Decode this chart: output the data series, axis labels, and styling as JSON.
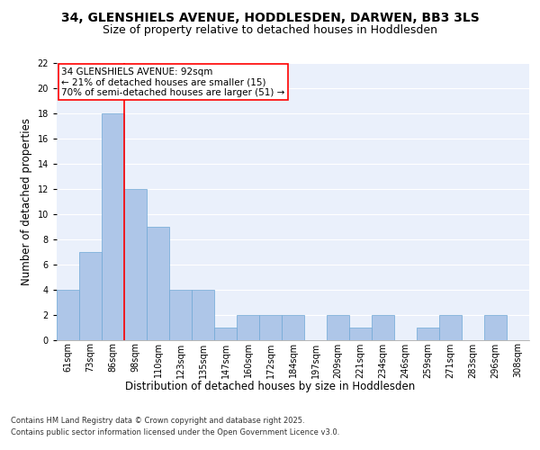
{
  "title_line1": "34, GLENSHIELS AVENUE, HODDLESDEN, DARWEN, BB3 3LS",
  "title_line2": "Size of property relative to detached houses in Hoddlesden",
  "xlabel": "Distribution of detached houses by size in Hoddlesden",
  "ylabel": "Number of detached properties",
  "categories": [
    "61sqm",
    "73sqm",
    "86sqm",
    "98sqm",
    "110sqm",
    "123sqm",
    "135sqm",
    "147sqm",
    "160sqm",
    "172sqm",
    "184sqm",
    "197sqm",
    "209sqm",
    "221sqm",
    "234sqm",
    "246sqm",
    "259sqm",
    "271sqm",
    "283sqm",
    "296sqm",
    "308sqm"
  ],
  "values": [
    4,
    7,
    18,
    12,
    9,
    4,
    4,
    1,
    2,
    2,
    2,
    0,
    2,
    1,
    2,
    0,
    1,
    2,
    0,
    2,
    0
  ],
  "bar_color": "#aec6e8",
  "bar_edge_color": "#6fa8d6",
  "ylim": [
    0,
    22
  ],
  "yticks": [
    0,
    2,
    4,
    6,
    8,
    10,
    12,
    14,
    16,
    18,
    20,
    22
  ],
  "annotation_title": "34 GLENSHIELS AVENUE: 92sqm",
  "annotation_line1": "← 21% of detached houses are smaller (15)",
  "annotation_line2": "70% of semi-detached houses are larger (51) →",
  "footer_line1": "Contains HM Land Registry data © Crown copyright and database right 2025.",
  "footer_line2": "Contains public sector information licensed under the Open Government Licence v3.0.",
  "bg_color": "#eaf0fb",
  "grid_color": "#ffffff",
  "title_fontsize": 10,
  "subtitle_fontsize": 9,
  "axis_label_fontsize": 8.5,
  "tick_fontsize": 7,
  "ann_fontsize": 7.5,
  "footer_fontsize": 6
}
